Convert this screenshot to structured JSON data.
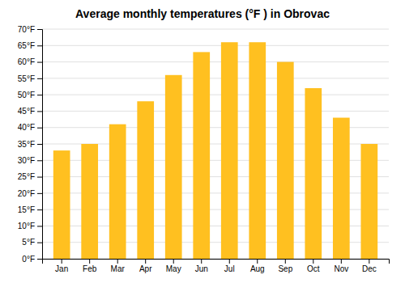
{
  "chart_data": {
    "type": "bar",
    "title": "Average monthly temperatures (°F ) in Obrovac",
    "categories": [
      "Jan",
      "Feb",
      "Mar",
      "Apr",
      "May",
      "Jun",
      "Jul",
      "Aug",
      "Sep",
      "Oct",
      "Nov",
      "Dec"
    ],
    "values": [
      33,
      35,
      41,
      48,
      56,
      63,
      66,
      66,
      60,
      52,
      43,
      35
    ],
    "color": "#FFC020",
    "ylim": [
      0,
      70
    ],
    "yticks": [
      {
        "value": 0,
        "label": "0°F"
      },
      {
        "value": 5,
        "label": "5°F"
      },
      {
        "value": 10,
        "label": "10°F"
      },
      {
        "value": 15,
        "label": "15°F"
      },
      {
        "value": 20,
        "label": "20°F"
      },
      {
        "value": 25,
        "label": "25°F"
      },
      {
        "value": 30,
        "label": "30°F"
      },
      {
        "value": 35,
        "label": "35°F"
      },
      {
        "value": 40,
        "label": "40°F"
      },
      {
        "value": 45,
        "label": "45°F"
      },
      {
        "value": 50,
        "label": "50°F"
      },
      {
        "value": 55,
        "label": "55°F"
      },
      {
        "value": 60,
        "label": "60°F"
      },
      {
        "value": 65,
        "label": "65°F"
      },
      {
        "value": 70,
        "label": "70°F"
      }
    ],
    "grid": true
  }
}
